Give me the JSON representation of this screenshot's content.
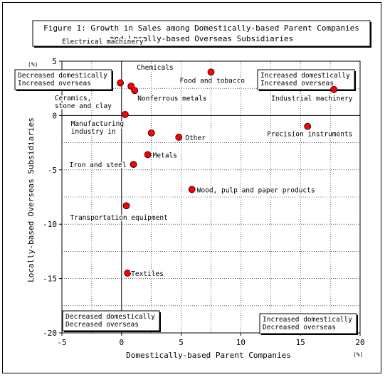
{
  "chart_data": {
    "type": "scatter",
    "title": [
      "Figure 1: Growth in Sales among Domestically-based Parent Companies",
      "and Locally-based Overseas Subsidiaries"
    ],
    "xlabel": "Domestically-based Parent Companies",
    "ylabel": "Locally-based Overseas Subsidiaries",
    "x_unit": "(%)",
    "y_unit": "(%)",
    "xlim": [
      -5,
      20
    ],
    "ylim": [
      -20,
      5
    ],
    "x_ticks": [
      -5,
      0,
      5,
      10,
      15,
      20
    ],
    "y_ticks": [
      5,
      0,
      -5,
      -10,
      -15,
      -20
    ],
    "grid": "dashed",
    "marker_color": "#ff0000",
    "points": [
      {
        "label": "Electrical machinery",
        "x": -0.1,
        "y": 3.0
      },
      {
        "label": "Chemicals",
        "x": 0.8,
        "y": 2.7
      },
      {
        "label": "Nonferrous metals",
        "x": 1.1,
        "y": 2.3
      },
      {
        "label": "Food and tobacco",
        "x": 7.5,
        "y": 4.0
      },
      {
        "label": "Industrial machinery",
        "x": 17.8,
        "y": 2.4
      },
      {
        "label": "Ceramics,\nstone and clay",
        "x": 0.3,
        "y": 0.1
      },
      {
        "label": "Precision instruments",
        "x": 15.6,
        "y": -1.0
      },
      {
        "label": "Manufacturing\nindustry in",
        "x": 2.5,
        "y": -1.6
      },
      {
        "label": "Other",
        "x": 4.8,
        "y": -2.0
      },
      {
        "label": "Metals",
        "x": 2.2,
        "y": -3.6
      },
      {
        "label": "Iron and steel",
        "x": 1.0,
        "y": -4.5
      },
      {
        "label": "Wood, pulp and paper products",
        "x": 5.9,
        "y": -6.8
      },
      {
        "label": "Transportation equipment",
        "x": 0.4,
        "y": -8.3
      },
      {
        "label": "Textiles",
        "x": 0.5,
        "y": -14.5
      }
    ],
    "quadrant_labels": [
      {
        "position": "top-left",
        "text": "Decreased domestically\nIncreased overseas"
      },
      {
        "position": "top-right",
        "text": "Increased domestically\nIncreased overseas"
      },
      {
        "position": "bottom-left",
        "text": "Decreased domestically\nDecreased overseas"
      },
      {
        "position": "bottom-right",
        "text": "Increased domestically\nDecreased overseas"
      }
    ]
  }
}
